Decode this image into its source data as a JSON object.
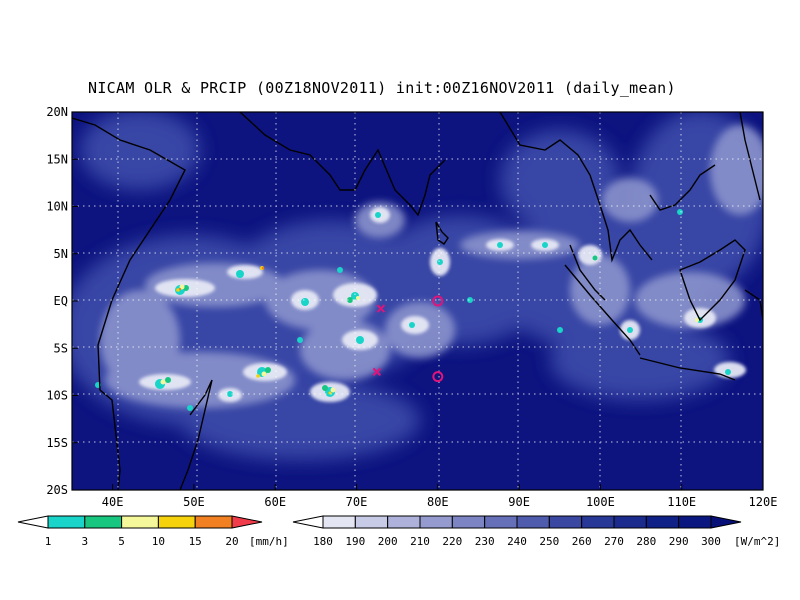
{
  "title": "NICAM OLR & PRCIP (00Z18NOV2011) init:00Z16NOV2011 (daily_mean)",
  "map": {
    "lon_ticks": [
      "40E",
      "50E",
      "60E",
      "70E",
      "80E",
      "90E",
      "100E",
      "110E",
      "120E"
    ],
    "lat_ticks": [
      "20N",
      "15N",
      "10N",
      "5N",
      "EQ",
      "5S",
      "10S",
      "15S",
      "20S"
    ],
    "lon_range": [
      35,
      120
    ],
    "lat_range": [
      -20,
      20
    ],
    "ocean_color": "#0d1480",
    "markers": [
      {
        "type": "x",
        "lon": 73,
        "lat": -0.8,
        "color": "#e0147a"
      },
      {
        "type": "x",
        "lon": 72.5,
        "lat": -7.5,
        "color": "#e0147a"
      },
      {
        "type": "circle",
        "lon": 80,
        "lat": 0,
        "color": "#e0147a"
      },
      {
        "type": "circle",
        "lon": 80,
        "lat": -8,
        "color": "#e0147a"
      }
    ]
  },
  "precip_colorbar": {
    "unit": "[mm/h]",
    "labels": [
      "1",
      "3",
      "5",
      "10",
      "15",
      "20"
    ],
    "colors": [
      "#ffffff",
      "#19d4c8",
      "#17c77f",
      "#f4f79a",
      "#f5d20b",
      "#f08022",
      "#f03c4a"
    ]
  },
  "olr_colorbar": {
    "unit": "[W/m^2]",
    "labels": [
      "180",
      "190",
      "200",
      "210",
      "220",
      "230",
      "240",
      "250",
      "260",
      "270",
      "280",
      "290",
      "300"
    ],
    "colors": [
      "#ffffff",
      "#e3e5f2",
      "#c8cbe6",
      "#aeb2da",
      "#959bcf",
      "#7d84c4",
      "#6670b8",
      "#4f5bac",
      "#3a48a2",
      "#283897",
      "#1a2b8d",
      "#0f2086",
      "#0a1780",
      "#071078"
    ]
  }
}
